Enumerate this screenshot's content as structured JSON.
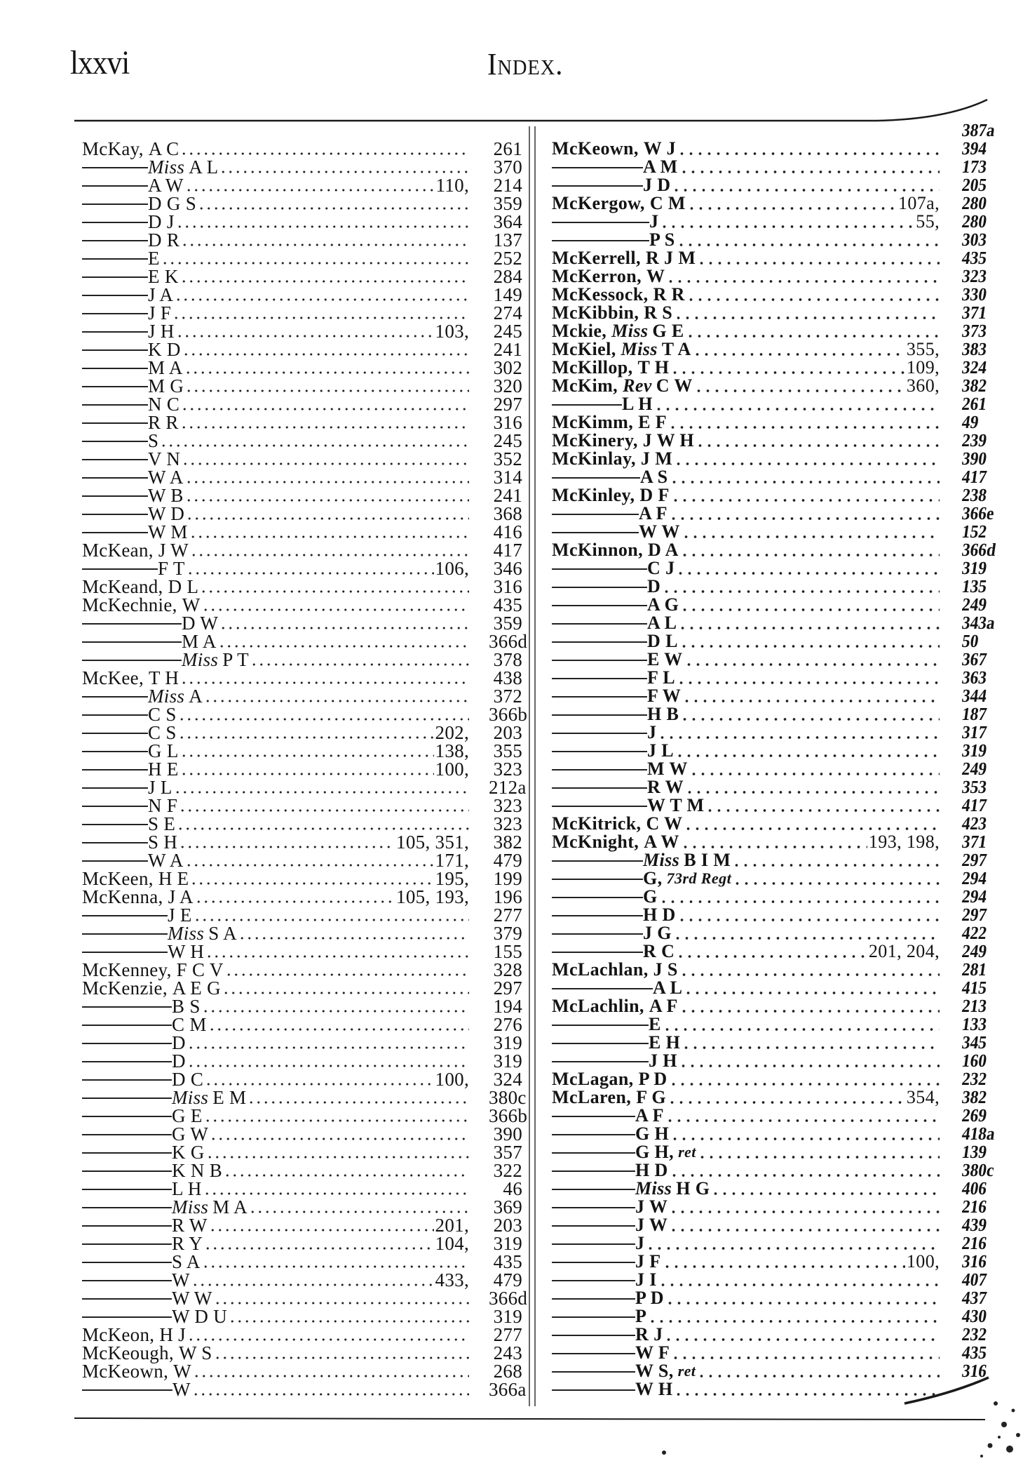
{
  "header": {
    "folio": "lxxvi",
    "title": "Index."
  },
  "left": {
    "entries": [
      {
        "surname": "McKay,",
        "given": "A C",
        "page": "261"
      },
      {
        "prefix": "Miss",
        "given": "A L",
        "page": "370"
      },
      {
        "given": "A W",
        "extra": "110,",
        "page": "214"
      },
      {
        "given": "D G S",
        "page": "359"
      },
      {
        "given": "D J",
        "page": "364"
      },
      {
        "given": "D R",
        "page": "137"
      },
      {
        "given": "E",
        "page": "252"
      },
      {
        "given": "E K",
        "page": "284"
      },
      {
        "given": "J A",
        "page": "149"
      },
      {
        "given": "J F",
        "page": "274"
      },
      {
        "given": "J H",
        "extra": "103,",
        "page": "245"
      },
      {
        "given": "K D",
        "page": "241"
      },
      {
        "given": "M A",
        "page": "302"
      },
      {
        "given": "M G",
        "page": "320"
      },
      {
        "given": "N C",
        "page": "297"
      },
      {
        "given": "R R",
        "page": "316"
      },
      {
        "given": "S",
        "page": "245"
      },
      {
        "given": "V N",
        "page": "352"
      },
      {
        "given": "W A",
        "page": "314"
      },
      {
        "given": "W B",
        "page": "241"
      },
      {
        "given": "W D",
        "page": "368"
      },
      {
        "given": "W M",
        "page": "416"
      },
      {
        "surname": "McKean,",
        "given": "J W",
        "page": "417"
      },
      {
        "given": "F T",
        "extra": "106,",
        "page": "346"
      },
      {
        "surname": "McKeand,",
        "given": "D L",
        "page": "316"
      },
      {
        "surname": "McKechnie,",
        "given": "W",
        "page": "435"
      },
      {
        "given": "D W",
        "page": "359"
      },
      {
        "given": "M A",
        "page": "366d"
      },
      {
        "prefix": "Miss",
        "given": "P T",
        "page": "378"
      },
      {
        "surname": "McKee,",
        "given": "T H",
        "page": "438"
      },
      {
        "prefix": "Miss",
        "given": "A",
        "page": "372"
      },
      {
        "given": "C S",
        "page": "366b"
      },
      {
        "given": "C S",
        "extra": "202,",
        "page": "203"
      },
      {
        "given": "G L",
        "extra": "138,",
        "page": "355"
      },
      {
        "given": "H E",
        "extra": "100,",
        "page": "323"
      },
      {
        "given": "J L",
        "page": "212a"
      },
      {
        "given": "N F",
        "page": "323"
      },
      {
        "given": "S E",
        "page": "323"
      },
      {
        "given": "S H",
        "extra": "105,  351,",
        "page": "382"
      },
      {
        "given": "W A",
        "extra": "171,",
        "page": "479"
      },
      {
        "surname": "McKeen,",
        "given": "H E",
        "extra": "195,",
        "page": "199"
      },
      {
        "surname": "McKenna,",
        "given": "J A",
        "extra": "105,  193,",
        "page": "196"
      },
      {
        "given": "J E",
        "page": "277"
      },
      {
        "prefix": "Miss",
        "given": "S A",
        "page": "379"
      },
      {
        "given": "W H",
        "page": "155"
      },
      {
        "surname": "McKenney,",
        "given": "F C V",
        "page": "328"
      },
      {
        "surname": "McKenzie,",
        "given": "A E G",
        "page": "297"
      },
      {
        "given": "B S",
        "page": "194"
      },
      {
        "given": "C M",
        "page": "276"
      },
      {
        "given": "D",
        "page": "319"
      },
      {
        "given": "D",
        "page": "319"
      },
      {
        "given": "D C",
        "extra": "100,",
        "page": "324"
      },
      {
        "prefix": "Miss",
        "given": "E M",
        "page": "380c"
      },
      {
        "given": "G E",
        "page": "366b"
      },
      {
        "given": "G W",
        "page": "390"
      },
      {
        "given": "K G",
        "page": "357"
      },
      {
        "given": "K N B",
        "page": "322"
      },
      {
        "given": "L H",
        "page": "46"
      },
      {
        "prefix": "Miss",
        "given": "M A",
        "page": "369"
      },
      {
        "given": "R W",
        "extra": "201,",
        "page": "203"
      },
      {
        "given": "R Y",
        "extra": "104,",
        "page": "319"
      },
      {
        "given": "S A",
        "page": "435"
      },
      {
        "given": "W",
        "extra": "433,",
        "page": "479"
      },
      {
        "given": "W W",
        "page": "366d"
      },
      {
        "given": "W D U",
        "page": "319"
      },
      {
        "surname": "McKeon,",
        "given": "H J",
        "page": "277"
      },
      {
        "surname": "McKeough,",
        "given": "W S",
        "page": "243"
      },
      {
        "surname": "McKeown,",
        "given": "W",
        "page": "268"
      },
      {
        "given": "W",
        "page": "366a"
      }
    ]
  },
  "right": {
    "entries": [
      {
        "surname": "McKeown,",
        "given": "W J"
      },
      {
        "given": "A M"
      },
      {
        "given": "J D"
      },
      {
        "surname": "McKergow,",
        "given": "C M",
        "extra": "107a,"
      },
      {
        "given": "J",
        "extra": "55,"
      },
      {
        "given": "P S"
      },
      {
        "surname": "McKerrell,",
        "given": "R J M"
      },
      {
        "surname": "McKerron,",
        "given": "W"
      },
      {
        "surname": "McKessock,",
        "given": "R R"
      },
      {
        "surname": "McKibbin,",
        "given": "R S"
      },
      {
        "surname": "Mckie,",
        "prefix": "Miss",
        "given": "G E"
      },
      {
        "surname": "McKiel,",
        "prefix": "Miss",
        "given": "T A",
        "extra": "355,"
      },
      {
        "surname": "McKillop,",
        "given": "T H",
        "extra": "109,"
      },
      {
        "surname": "McKim,",
        "prefix": "Rev",
        "given": "C W",
        "extra": "360,"
      },
      {
        "given": "L H"
      },
      {
        "surname": "McKimm,",
        "given": "E F"
      },
      {
        "surname": "McKinery,",
        "given": "J W H"
      },
      {
        "surname": "McKinlay,",
        "given": "J M"
      },
      {
        "given": "A S"
      },
      {
        "surname": "McKinley,",
        "given": "D F"
      },
      {
        "given": "A F"
      },
      {
        "given": "W W"
      },
      {
        "surname": "McKinnon,",
        "given": "D A"
      },
      {
        "given": "C J"
      },
      {
        "given": "D"
      },
      {
        "given": "A G"
      },
      {
        "given": "A L"
      },
      {
        "given": "D L"
      },
      {
        "given": "E W"
      },
      {
        "given": "F L"
      },
      {
        "given": "F W"
      },
      {
        "given": "H B"
      },
      {
        "given": "J"
      },
      {
        "given": "J L"
      },
      {
        "given": "M W"
      },
      {
        "given": "R W"
      },
      {
        "given": "W T M"
      },
      {
        "surname": "McKitrick,",
        "given": "C W"
      },
      {
        "surname": "McKnight,",
        "given": "A W",
        "extra": "193,  198,"
      },
      {
        "prefix": "Miss",
        "given": "B I M"
      },
      {
        "given": "G,",
        "suffix": "73rd Regt"
      },
      {
        "given": "G"
      },
      {
        "given": "H D"
      },
      {
        "given": "J G"
      },
      {
        "given": "R C",
        "extra": "201,  204,"
      },
      {
        "surname": "McLachlan,",
        "given": "J S"
      },
      {
        "given": "A L"
      },
      {
        "surname": "McLachlin,",
        "given": "A F"
      },
      {
        "given": "E"
      },
      {
        "given": "E H"
      },
      {
        "given": "J H"
      },
      {
        "surname": "McLagan,",
        "given": "P D"
      },
      {
        "surname": "McLaren,",
        "given": "F G",
        "extra": "354,"
      },
      {
        "given": "A F"
      },
      {
        "given": "G H"
      },
      {
        "given": "G H,",
        "suffix": "ret"
      },
      {
        "given": "H D"
      },
      {
        "prefix": "Miss",
        "given": "H G"
      },
      {
        "given": "J W"
      },
      {
        "given": "J W"
      },
      {
        "given": "J"
      },
      {
        "given": "J F",
        "extra": "100,"
      },
      {
        "given": "J I"
      },
      {
        "given": "P D"
      },
      {
        "given": "P"
      },
      {
        "given": "R J"
      },
      {
        "given": "W F"
      },
      {
        "given": "W S,",
        "suffix": "ret"
      },
      {
        "given": "W H"
      }
    ],
    "pages": [
      "387a",
      "394",
      "173",
      "205",
      "280",
      "280",
      "303",
      "435",
      "323",
      "330",
      "371",
      "373",
      "383",
      "324",
      "382",
      "261",
      "49",
      "239",
      "390",
      "417",
      "238",
      "366e",
      "152",
      "366d",
      "319",
      "135",
      "249",
      "343a",
      "50",
      "367",
      "363",
      "344",
      "187",
      "317",
      "319",
      "249",
      "353",
      "417",
      "423",
      "371",
      "297",
      "294",
      "294",
      "297",
      "422",
      "249",
      "281",
      "415",
      "213",
      "133",
      "345",
      "160",
      "232",
      "382",
      "269",
      "418a",
      "139",
      "380c",
      "406",
      "216",
      "439",
      "216",
      "316",
      "407",
      "437",
      "430",
      "232",
      "435",
      "316"
    ]
  }
}
